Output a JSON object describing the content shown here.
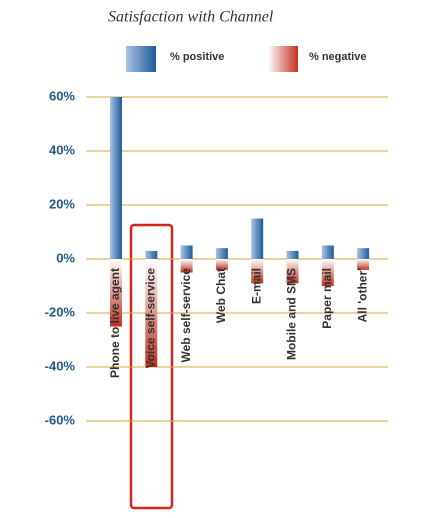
{
  "chart_data": {
    "type": "bar",
    "title": "Satisfaction with Channel",
    "categories": [
      "Phone to live agent",
      "Voice self-service",
      "Web self-service",
      "Web Chat",
      "E-mail",
      "Mobile and SMS",
      "Paper mail",
      "All 'other'"
    ],
    "series": [
      {
        "name": "% positive",
        "color": "#1f5a9a",
        "values": [
          60,
          3,
          5,
          4,
          15,
          3,
          5,
          4
        ]
      },
      {
        "name": "% negative",
        "color": "#c0301e",
        "values": [
          -25,
          -40,
          -5,
          -4,
          -9,
          -9,
          -10,
          -4
        ]
      }
    ],
    "ylim": [
      -60,
      60
    ],
    "yticks": [
      {
        "value": -60,
        "label": "-60%"
      },
      {
        "value": -40,
        "label": "-40%"
      },
      {
        "value": -20,
        "label": "-20%"
      },
      {
        "value": 0,
        "label": "0%"
      },
      {
        "value": 20,
        "label": "20%"
      },
      {
        "value": 40,
        "label": "40%"
      },
      {
        "value": 60,
        "label": "60%"
      }
    ],
    "grid": true
  }
}
